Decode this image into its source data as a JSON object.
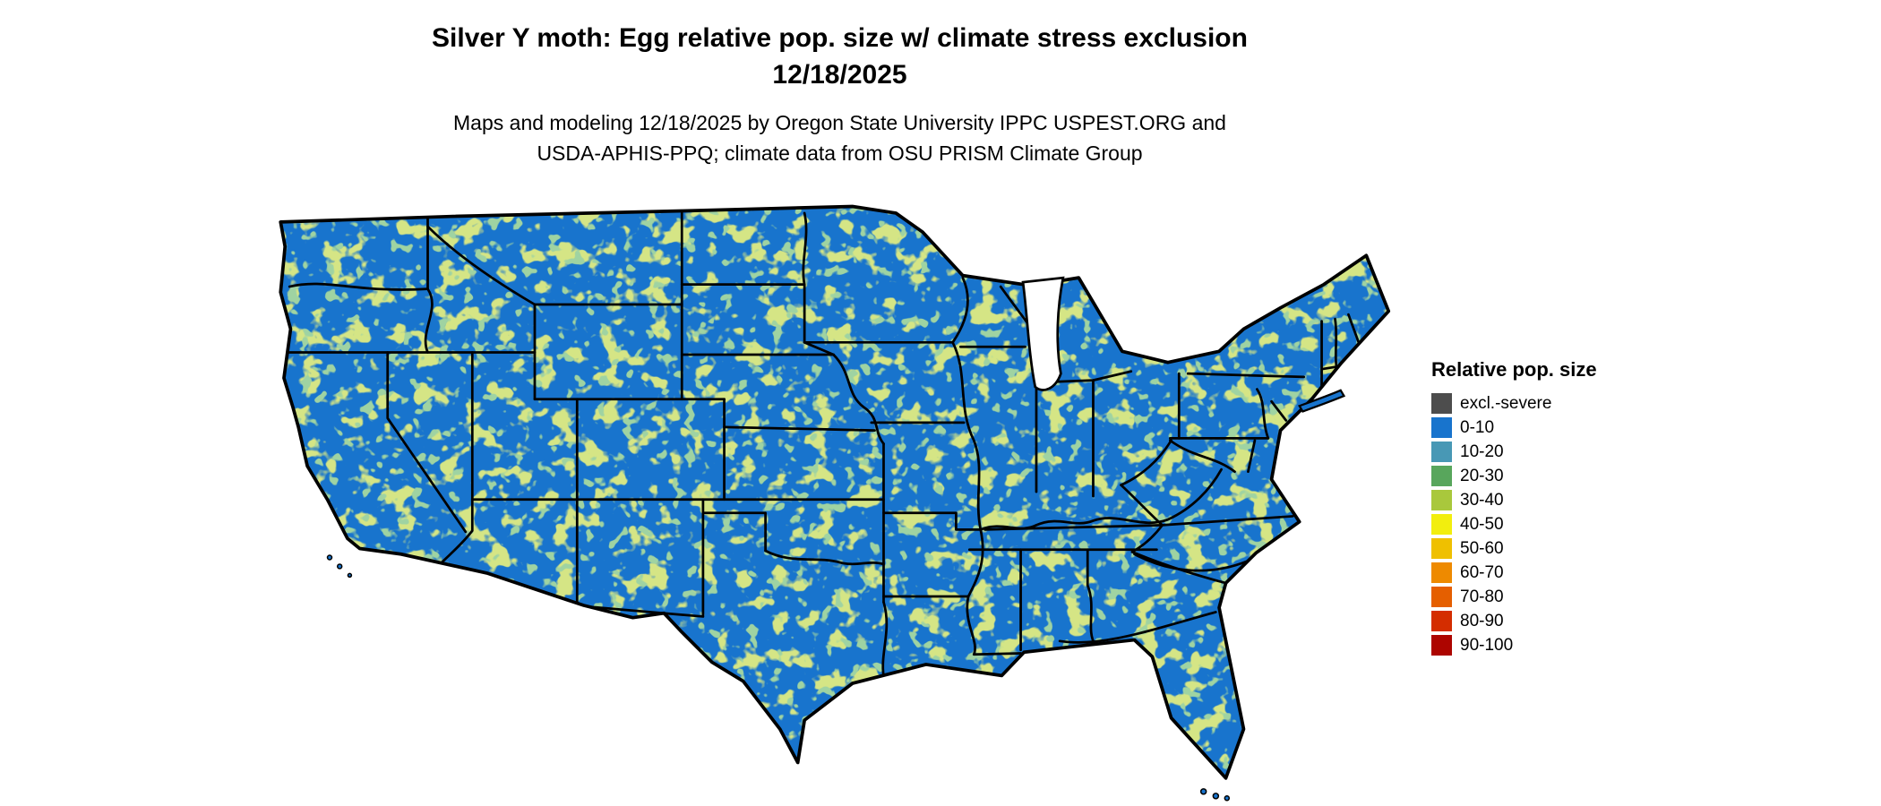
{
  "title": {
    "line1": "Silver Y moth: Egg relative pop. size w/ climate stress exclusion",
    "line2": "12/18/2025"
  },
  "subtitle": {
    "line1": "Maps and modeling 12/18/2025 by Oregon State University IPPC USPEST.ORG and",
    "line2": "USDA-APHIS-PPQ; climate data from OSU PRISM Climate Group"
  },
  "map": {
    "region": "Contiguous United States",
    "base_color": "#1874CD",
    "speckle_colors": [
      "#a9c83c",
      "#58a65c"
    ],
    "border_color": "#000000",
    "water_color": "#ffffff"
  },
  "legend": {
    "title": "Relative pop. size",
    "items": [
      {
        "label": "excl.-severe",
        "color": "#4d4d4d"
      },
      {
        "label": "0-10",
        "color": "#1874CD"
      },
      {
        "label": "10-20",
        "color": "#4898b5"
      },
      {
        "label": "20-30",
        "color": "#58a65c"
      },
      {
        "label": "30-40",
        "color": "#a9c83c"
      },
      {
        "label": "40-50",
        "color": "#f2ee0e"
      },
      {
        "label": "50-60",
        "color": "#efc000"
      },
      {
        "label": "60-70",
        "color": "#ee8a00"
      },
      {
        "label": "70-80",
        "color": "#e55f00"
      },
      {
        "label": "80-90",
        "color": "#d42d00"
      },
      {
        "label": "90-100",
        "color": "#ad0500"
      }
    ]
  }
}
